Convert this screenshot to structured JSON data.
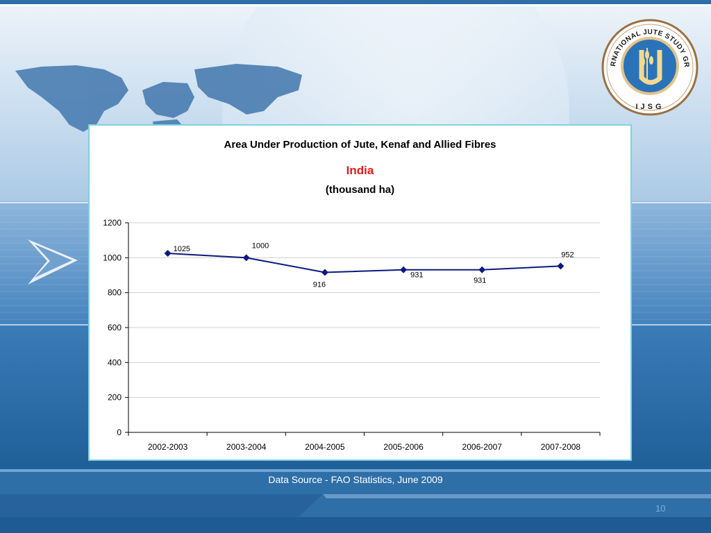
{
  "colors": {
    "series_line": "#0a1a80",
    "highlight_title": "#e8191c",
    "panel_border": "#7fd0e0",
    "gridline": "#d0d0d0"
  },
  "logo": {
    "text_top": "INTERNATIONAL JUTE STUDY GROUP",
    "text_bottom": "IJSG",
    "icon": "jute-sheaf-icon"
  },
  "chart_data": {
    "type": "line",
    "title": "Area Under Production of Jute, Kenaf and Allied Fibres",
    "subtitle": "India",
    "unit_label": "(thousand ha)",
    "categories": [
      "2002-2003",
      "2003-2004",
      "2004-2005",
      "2005-2006",
      "2006-2007",
      "2007-2008"
    ],
    "series": [
      {
        "values": [
          1025,
          1000,
          916,
          931,
          931,
          952
        ]
      }
    ],
    "data_labels": [
      "1025",
      "1000",
      "916",
      "931",
      "931",
      "952"
    ],
    "yticks": [
      0,
      200,
      400,
      600,
      800,
      1000,
      1200
    ],
    "ylim": [
      0,
      1200
    ],
    "grid": true,
    "legend": "none"
  },
  "footer": {
    "source": "Data Source - FAO Statistics, June 2009",
    "page_number": "10"
  }
}
